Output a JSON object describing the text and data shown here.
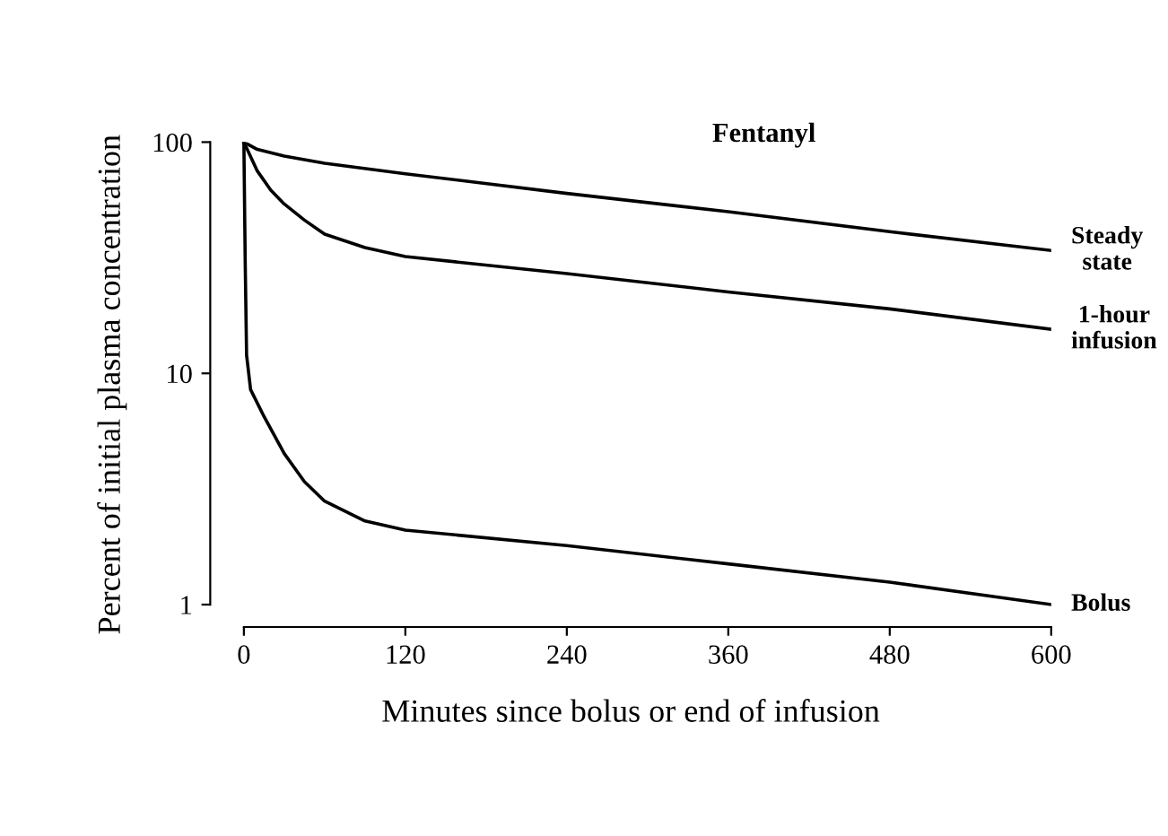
{
  "chart_data": {
    "type": "line",
    "title": "Fentanyl",
    "xlabel": "Minutes since bolus or end of infusion",
    "ylabel": "Percent of initial plasma concentration",
    "series": [
      {
        "name": "Steady state",
        "color": "#000000",
        "x": [
          0,
          10,
          30,
          60,
          120,
          240,
          360,
          480,
          600
        ],
        "values": [
          100,
          93,
          87,
          81,
          73,
          60,
          50,
          41,
          34
        ]
      },
      {
        "name": "1-hour infusion",
        "color": "#000000",
        "x": [
          0,
          10,
          20,
          30,
          45,
          60,
          90,
          120,
          240,
          360,
          480,
          600
        ],
        "values": [
          100,
          75,
          62,
          54,
          46,
          40,
          35,
          32,
          27,
          22.5,
          19,
          15.5
        ]
      },
      {
        "name": "Bolus",
        "color": "#000000",
        "x": [
          0,
          1,
          2,
          5,
          15,
          30,
          45,
          60,
          90,
          120,
          240,
          360,
          480,
          600
        ],
        "values": [
          100,
          30,
          12,
          8.5,
          6.5,
          4.5,
          3.4,
          2.8,
          2.3,
          2.1,
          1.8,
          1.5,
          1.25,
          1.0
        ]
      }
    ],
    "xlim": [
      -25,
      600
    ],
    "xticks": [
      0,
      120,
      240,
      360,
      480,
      600
    ],
    "ylim": [
      0.8,
      100
    ],
    "yticks": [
      1,
      10,
      100
    ],
    "log": "y",
    "grid": false,
    "legend": false,
    "marker": "none",
    "line_style": "solid"
  }
}
